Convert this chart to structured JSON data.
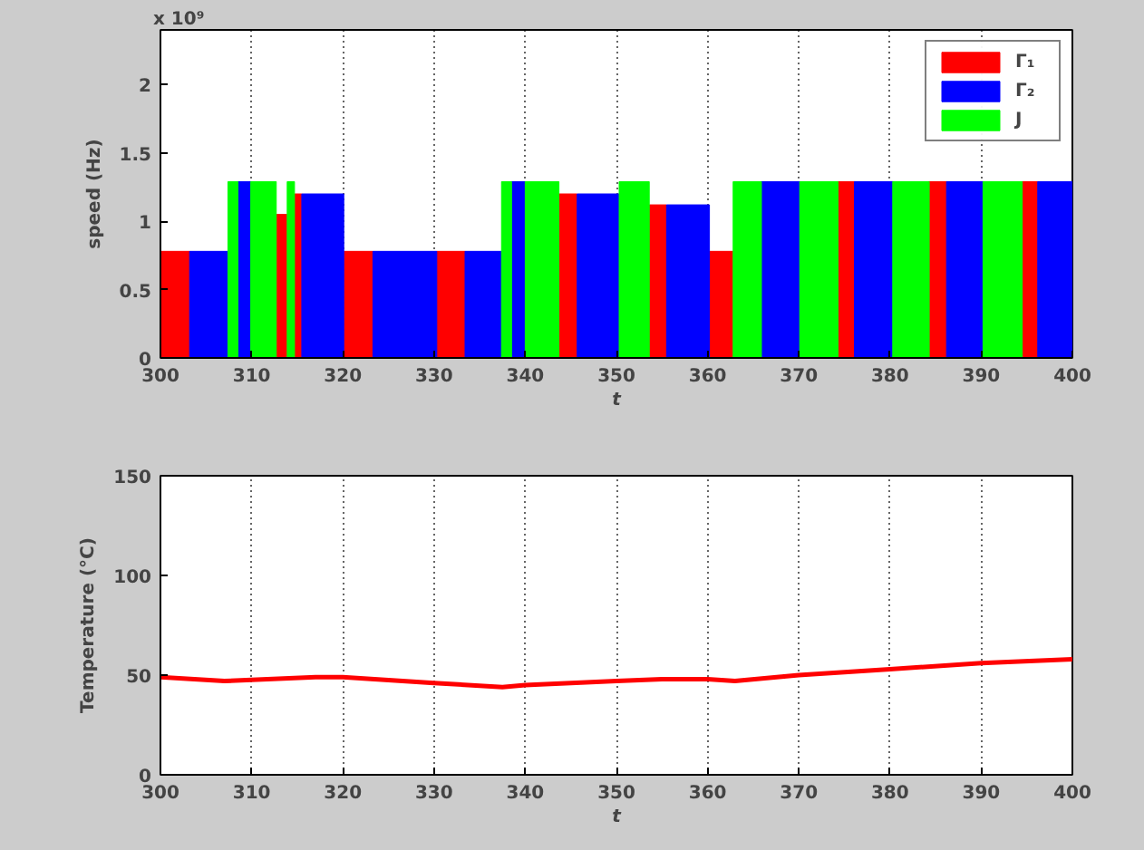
{
  "chart_data": [
    {
      "type": "histogram",
      "xlabel": "t",
      "ylabel": "speed (Hz)",
      "annotations": [
        "x 10⁹"
      ],
      "bins": [
        300,
        303.2,
        307.4,
        308.5,
        309.9,
        312.7,
        313.9,
        314.7,
        315.5,
        320.1,
        323.3,
        330.3,
        333.4,
        337.4,
        338.5,
        340.0,
        343.7,
        345.7,
        350.3,
        353.6,
        355.5,
        360.2,
        362.8,
        365.9,
        370.1,
        374.3,
        376.1,
        380.3,
        384.3,
        386.2,
        390.2,
        394.5,
        396.2,
        400
      ],
      "series": [
        {
          "name": "Γ₁",
          "color": "#ff0000",
          "values": [
            0.78,
            null,
            null,
            null,
            null,
            1.05,
            null,
            1.2,
            null,
            0.78,
            null,
            0.78,
            null,
            null,
            null,
            null,
            1.2,
            null,
            null,
            1.12,
            null,
            0.78,
            null,
            null,
            null,
            1.29,
            null,
            null,
            1.29,
            null,
            null,
            1.29,
            null
          ]
        },
        {
          "name": "Γ₂",
          "color": "#0000ff",
          "values": [
            null,
            0.78,
            null,
            1.29,
            null,
            null,
            null,
            null,
            1.2,
            null,
            0.78,
            null,
            0.78,
            null,
            1.29,
            null,
            null,
            1.2,
            null,
            null,
            1.12,
            null,
            null,
            1.29,
            null,
            null,
            1.29,
            null,
            null,
            1.29,
            null,
            null,
            1.29
          ]
        },
        {
          "name": "J",
          "color": "#00ff00",
          "values": [
            null,
            null,
            1.29,
            null,
            1.29,
            null,
            1.29,
            null,
            null,
            null,
            null,
            null,
            null,
            1.29,
            null,
            1.29,
            null,
            null,
            1.29,
            null,
            null,
            null,
            1.29,
            null,
            1.29,
            null,
            null,
            1.29,
            null,
            null,
            1.29,
            null,
            null
          ]
        }
      ],
      "xlim": [
        300,
        400
      ],
      "xticks": [
        300,
        310,
        320,
        330,
        340,
        350,
        360,
        370,
        380,
        390,
        400
      ],
      "ylim": [
        0,
        2.4
      ],
      "yticks": [
        0,
        0.5,
        1,
        1.5,
        2
      ],
      "grid": "x",
      "legend": "top right"
    },
    {
      "type": "line",
      "xlabel": "t",
      "ylabel": "Temperature (°C)",
      "x": [
        300,
        307,
        317,
        320,
        330,
        337.5,
        340,
        350,
        355,
        360,
        363,
        370,
        380,
        390,
        400
      ],
      "series": [
        {
          "color": "#ff0000",
          "values": [
            49,
            47,
            49,
            49,
            46,
            44,
            45,
            47,
            48,
            48,
            47,
            50,
            53,
            56,
            58
          ]
        }
      ],
      "xlim": [
        300,
        400
      ],
      "xticks": [
        300,
        310,
        320,
        330,
        340,
        350,
        360,
        370,
        380,
        390,
        400
      ],
      "ylim": [
        0,
        150
      ],
      "yticks": [
        0,
        50,
        100,
        150
      ],
      "grid": "x"
    }
  ]
}
